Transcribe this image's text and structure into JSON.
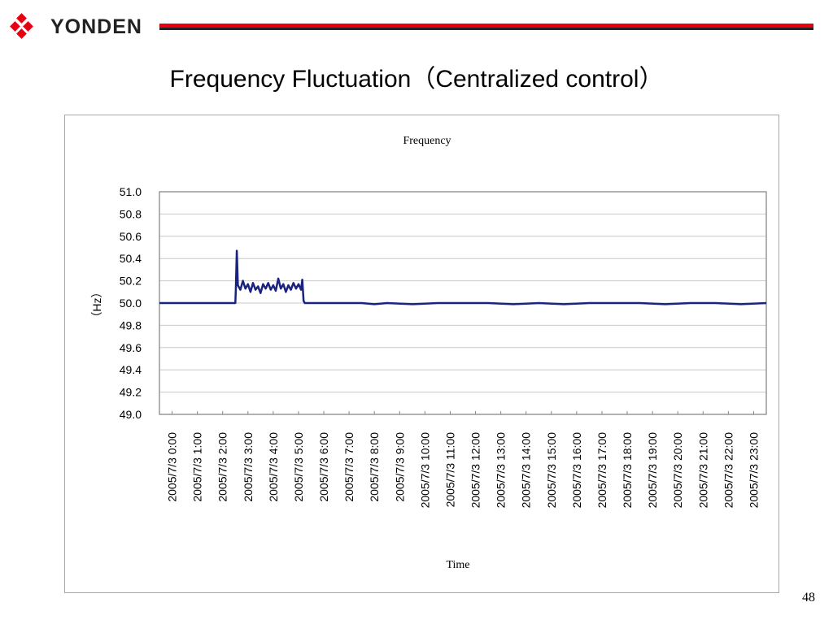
{
  "header": {
    "brand": "YONDEN",
    "slide_title": "Frequency Fluctuation（Centralized control）"
  },
  "page_number": "48",
  "colors": {
    "brand_red": "#e60012",
    "series": "#1a237e",
    "grid": "#c8c8c8"
  },
  "chart_data": {
    "type": "line",
    "title": "Frequency",
    "xlabel": "Time",
    "ylabel": "（Hz）",
    "ylim": [
      49.0,
      51.0
    ],
    "yticks": [
      "51.0",
      "50.8",
      "50.6",
      "50.4",
      "50.2",
      "50.0",
      "49.8",
      "49.6",
      "49.4",
      "49.2",
      "49.0"
    ],
    "categories": [
      "2005/7/3 0:00",
      "2005/7/3 1:00",
      "2005/7/3 2:00",
      "2005/7/3 3:00",
      "2005/7/3 4:00",
      "2005/7/3 5:00",
      "2005/7/3 6:00",
      "2005/7/3 7:00",
      "2005/7/3 8:00",
      "2005/7/3 9:00",
      "2005/7/3 10:00",
      "2005/7/3 11:00",
      "2005/7/3 12:00",
      "2005/7/3 13:00",
      "2005/7/3 14:00",
      "2005/7/3 15:00",
      "2005/7/3 16:00",
      "2005/7/3 17:00",
      "2005/7/3 18:00",
      "2005/7/3 19:00",
      "2005/7/3 20:00",
      "2005/7/3 21:00",
      "2005/7/3 22:00",
      "2005/7/3 23:00"
    ],
    "grid": "horizontal",
    "series": [
      {
        "values": [
          [
            0.0,
            50.0
          ],
          [
            3.0,
            50.0
          ],
          [
            3.02,
            50.12
          ],
          [
            3.06,
            50.47
          ],
          [
            3.1,
            50.16
          ],
          [
            3.2,
            50.12
          ],
          [
            3.3,
            50.2
          ],
          [
            3.4,
            50.13
          ],
          [
            3.5,
            50.17
          ],
          [
            3.6,
            50.1
          ],
          [
            3.7,
            50.18
          ],
          [
            3.8,
            50.12
          ],
          [
            3.9,
            50.15
          ],
          [
            4.0,
            50.09
          ],
          [
            4.1,
            50.17
          ],
          [
            4.2,
            50.13
          ],
          [
            4.3,
            50.18
          ],
          [
            4.4,
            50.12
          ],
          [
            4.5,
            50.16
          ],
          [
            4.6,
            50.11
          ],
          [
            4.7,
            50.22
          ],
          [
            4.8,
            50.13
          ],
          [
            4.9,
            50.17
          ],
          [
            5.0,
            50.1
          ],
          [
            5.1,
            50.16
          ],
          [
            5.2,
            50.12
          ],
          [
            5.3,
            50.18
          ],
          [
            5.4,
            50.13
          ],
          [
            5.5,
            50.17
          ],
          [
            5.6,
            50.12
          ],
          [
            5.65,
            50.21
          ],
          [
            5.7,
            50.02
          ],
          [
            5.75,
            50.0
          ],
          [
            6.0,
            50.0
          ],
          [
            7.0,
            50.0
          ],
          [
            8.0,
            50.0
          ],
          [
            8.5,
            49.99
          ],
          [
            9.0,
            50.0
          ],
          [
            10.0,
            49.99
          ],
          [
            11.0,
            50.0
          ],
          [
            12.0,
            50.0
          ],
          [
            13.0,
            50.0
          ],
          [
            14.0,
            49.99
          ],
          [
            15.0,
            50.0
          ],
          [
            16.0,
            49.99
          ],
          [
            17.0,
            50.0
          ],
          [
            18.0,
            50.0
          ],
          [
            19.0,
            50.0
          ],
          [
            20.0,
            49.99
          ],
          [
            21.0,
            50.0
          ],
          [
            22.0,
            50.0
          ],
          [
            23.0,
            49.99
          ],
          [
            24.0,
            50.0
          ]
        ]
      }
    ]
  }
}
